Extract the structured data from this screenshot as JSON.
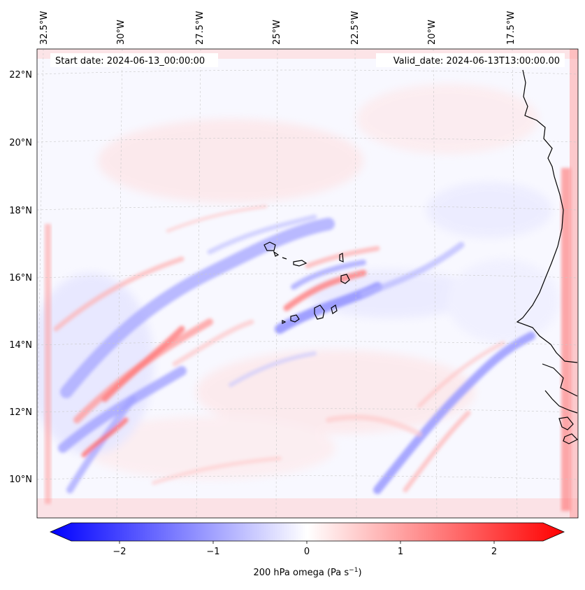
{
  "map": {
    "start_date": "Start date: 2024-06-13_00:00:00",
    "valid_date": "Valid_date: 2024-06-13T13:00:00.00",
    "lon_labels": [
      "32.5°W",
      "30°W",
      "27.5°W",
      "25°W",
      "22.5°W",
      "20°W",
      "17.5°W"
    ],
    "lat_labels": [
      "22°N",
      "20°N",
      "18°N",
      "16°N",
      "14°N",
      "12°N",
      "10°N"
    ],
    "colors": {
      "negative": "#0000ff",
      "neutral": "#ffffff",
      "positive": "#ff0000",
      "coast": "#000000"
    }
  },
  "colorbar": {
    "label": "200 hPa omega (Pa s",
    "label_sup": "−1",
    "label_end": ")",
    "range": [
      -2.7,
      2.7
    ],
    "ticks": [
      "−2",
      "−1",
      "0",
      "1",
      "2"
    ]
  }
}
